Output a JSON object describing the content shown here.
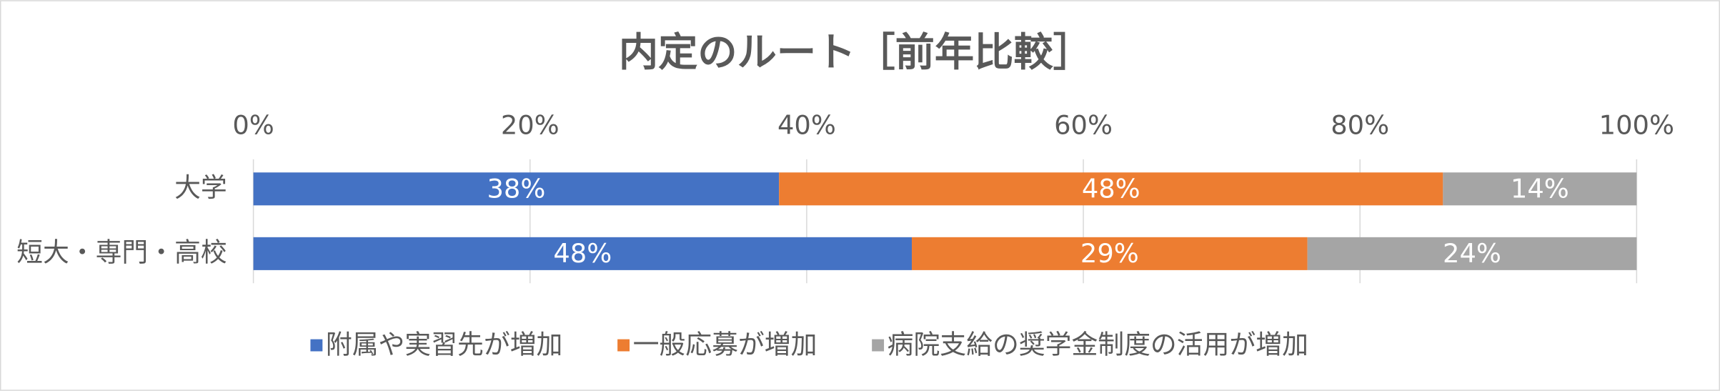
{
  "chart_data": {
    "type": "stacked-bar-horizontal",
    "title": "内定のルート［前年比較］",
    "categories": [
      "大学",
      "短大・専門・高校"
    ],
    "series": [
      {
        "name": "附属や実習先が増加",
        "color": "#4472c4",
        "values": [
          38,
          47.6
        ],
        "value_labels": [
          "38%",
          "48%"
        ]
      },
      {
        "name": "一般応募が増加",
        "color": "#ed7d31",
        "values": [
          48,
          28.6
        ],
        "value_labels": [
          "48%",
          "29%"
        ]
      },
      {
        "name": "病院支給の奨学金制度の活用が増加",
        "color": "#a5a5a5",
        "values": [
          14,
          23.8
        ],
        "value_labels": [
          "14%",
          "24%"
        ]
      }
    ],
    "xlim": [
      0,
      100
    ],
    "xticks": [
      {
        "value": 0,
        "label": "0%"
      },
      {
        "value": 20,
        "label": "20%"
      },
      {
        "value": 40,
        "label": "40%"
      },
      {
        "value": 60,
        "label": "60%"
      },
      {
        "value": 80,
        "label": "80%"
      },
      {
        "value": 100,
        "label": "100%"
      }
    ],
    "grid": true,
    "legend": "bottom"
  }
}
